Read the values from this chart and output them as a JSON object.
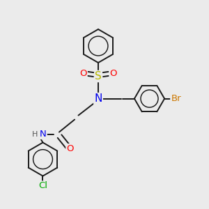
{
  "bg_color": "#ebebeb",
  "bond_color": "#1a1a1a",
  "bond_width": 1.4,
  "atom_colors": {
    "S": "#b8b800",
    "O": "#ff0000",
    "N": "#0000ee",
    "Br": "#cc7700",
    "Cl": "#00aa00",
    "H": "#555555",
    "C": "#1a1a1a"
  },
  "font_size": 9.5
}
